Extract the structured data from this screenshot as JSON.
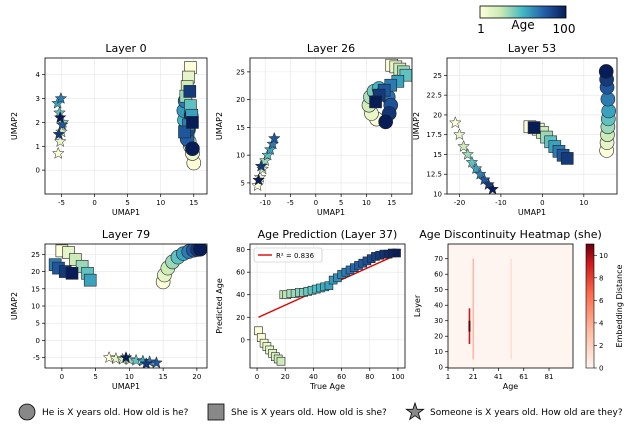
{
  "colorbar": {
    "label": "Age",
    "min_label": "1",
    "max_label": "100"
  },
  "legend": {
    "circle_label": "He is X years old. How old is he?",
    "square_label": "She is X years old. How old is she?",
    "star_label": "Someone is X years old. How old are they?"
  },
  "chart_data": [
    {
      "type": "scatter",
      "title": "Layer 0",
      "xlabel": "UMAP1",
      "ylabel": "UMAP2",
      "xlim": [
        -7.5,
        17
      ],
      "ylim": [
        -1,
        4.7
      ],
      "xticks": [
        -5,
        0,
        5,
        10,
        15
      ],
      "yticks": [
        0,
        1,
        2,
        3,
        4
      ],
      "series": [
        {
          "marker": "circle",
          "x": [
            15,
            14.8,
            14.5,
            14.3,
            14.0,
            13.8,
            13.6,
            13.5,
            13.7,
            14.0,
            14.2,
            14.6,
            14.8
          ],
          "y": [
            0.3,
            0.7,
            1.0,
            1.2,
            1.5,
            1.8,
            2.1,
            2.5,
            2.9,
            1.3,
            1.7,
            2.3,
            0.9
          ]
        },
        {
          "marker": "square",
          "x": [
            14.5,
            14.2,
            14.0,
            13.8,
            14.5,
            14.7,
            14.2,
            13.6,
            14.4,
            14.8
          ],
          "y": [
            4.3,
            3.9,
            3.5,
            3.1,
            2.7,
            2.3,
            1.9,
            1.6,
            3.3,
            2.0
          ]
        },
        {
          "marker": "star",
          "x": [
            -5.5,
            -5.2,
            -5.0,
            -4.8,
            -5.3,
            -5.6,
            -5.1,
            -4.9,
            -5.4,
            -5.2
          ],
          "y": [
            0.7,
            1.2,
            1.6,
            2.0,
            2.4,
            2.8,
            3.0,
            1.9,
            1.5,
            2.2
          ]
        }
      ]
    },
    {
      "type": "scatter",
      "title": "Layer 26",
      "xlabel": "UMAP1",
      "ylabel": "UMAP2",
      "xlim": [
        -13,
        19
      ],
      "ylim": [
        3,
        27.5
      ],
      "xticks": [
        -10,
        -5,
        0,
        5,
        10,
        15
      ],
      "yticks": [
        5,
        10,
        15,
        20,
        25
      ],
      "series": [
        {
          "marker": "circle",
          "x": [
            12,
            11,
            10.5,
            10.8,
            11.5,
            12.5,
            13.5,
            14.3,
            14.8,
            14.5,
            13.8
          ],
          "y": [
            16.5,
            17.5,
            19,
            20.5,
            21.5,
            22,
            21.5,
            20.5,
            19,
            17.5,
            16
          ]
        },
        {
          "marker": "square",
          "x": [
            15,
            15.8,
            16.6,
            17.3,
            17.8,
            16.2,
            14.8,
            13.5,
            12.5,
            11.8
          ],
          "y": [
            26.2,
            25.9,
            25.5,
            25.0,
            24.4,
            23.3,
            22.6,
            21.7,
            20.8,
            19.6
          ]
        },
        {
          "marker": "star",
          "x": [
            -11.5,
            -11.0,
            -10.5,
            -10.0,
            -9.5,
            -9.0,
            -8.5,
            -8.2,
            -10.8,
            -11.3
          ],
          "y": [
            4.5,
            6,
            7.5,
            9,
            10,
            11,
            12,
            13,
            8,
            5.5
          ]
        }
      ]
    },
    {
      "type": "scatter",
      "title": "Layer 53",
      "xlabel": "UMAP1",
      "ylabel": "UMAP2",
      "xlim": [
        -23,
        18
      ],
      "ylim": [
        10,
        27.2
      ],
      "xticks": [
        -20,
        -10,
        0,
        10
      ],
      "yticks": [
        10.0,
        12.5,
        15.0,
        17.5,
        20.0,
        22.5,
        25.0
      ],
      "series": [
        {
          "marker": "circle",
          "x": [
            15.5,
            15.6,
            15.7,
            15.8,
            15.9,
            16.0,
            15.8,
            15.6,
            15.5,
            15.4
          ],
          "y": [
            15.5,
            16.5,
            17.5,
            18.5,
            19.5,
            20.5,
            22,
            23.5,
            24.5,
            25.5
          ]
        },
        {
          "marker": "square",
          "x": [
            -3,
            -1,
            0,
            1,
            2,
            3,
            4,
            5,
            6,
            -2
          ],
          "y": [
            18.5,
            18.2,
            17.8,
            17.2,
            16.6,
            16.0,
            15.4,
            14.9,
            14.5,
            18.4
          ]
        },
        {
          "marker": "star",
          "x": [
            -21,
            -20,
            -19,
            -18,
            -17,
            -16,
            -15,
            -14,
            -13,
            -12
          ],
          "y": [
            19,
            17.5,
            16,
            15,
            14,
            13.2,
            12.5,
            11.8,
            11.2,
            10.6
          ]
        }
      ]
    },
    {
      "type": "scatter",
      "title": "Layer 79",
      "xlabel": "UMAP1",
      "ylabel": "UMAP2",
      "xlim": [
        -2.5,
        21.5
      ],
      "ylim": [
        -8,
        28
      ],
      "xticks": [
        0,
        5,
        10,
        15,
        20
      ],
      "yticks": [
        -5,
        0,
        5,
        10,
        15,
        20,
        25
      ],
      "series": [
        {
          "marker": "circle",
          "x": [
            15,
            15.2,
            15.7,
            16.4,
            17.2,
            18.0,
            18.8,
            19.5,
            20.1,
            20.5
          ],
          "y": [
            17,
            19,
            21,
            22.8,
            24.2,
            25.2,
            25.8,
            26.2,
            26.4,
            26.5
          ]
        },
        {
          "marker": "square",
          "x": [
            0,
            1,
            2,
            3,
            3.8,
            4.2,
            -1,
            -0.5,
            0.5,
            1.5
          ],
          "y": [
            26,
            25.5,
            23.5,
            21.5,
            19.5,
            17.5,
            22,
            21,
            20,
            19.5
          ]
        },
        {
          "marker": "star",
          "x": [
            7,
            8,
            9,
            10,
            11,
            12,
            13,
            14,
            12.5,
            9.5
          ],
          "y": [
            -5,
            -5.3,
            -5.5,
            -5.6,
            -5.8,
            -6.0,
            -6.2,
            -6.5,
            -6.8,
            -5.0
          ]
        }
      ]
    },
    {
      "type": "scatter",
      "title": "Age Prediction (Layer 37)",
      "xlabel": "True Age",
      "ylabel": "Predicted Age",
      "xlim": [
        -5,
        105
      ],
      "ylim": [
        -25,
        85
      ],
      "xticks": [
        0,
        20,
        40,
        60,
        80,
        100
      ],
      "yticks": [
        0,
        20,
        40,
        60,
        80
      ],
      "annotation": "R² = 0.836",
      "fit_line": {
        "x": [
          1,
          100
        ],
        "y": [
          20,
          76
        ]
      },
      "series": [
        {
          "marker": "square",
          "x": [
            1,
            3,
            5,
            7,
            9,
            11,
            13,
            15,
            17,
            19,
            21,
            24,
            27,
            30,
            33,
            36,
            39,
            42,
            45,
            48,
            51,
            54,
            57,
            60,
            63,
            66,
            69,
            72,
            75,
            78,
            81,
            84,
            87,
            90,
            93,
            96,
            99
          ],
          "y": [
            8,
            2,
            -3,
            -6,
            -9,
            -12,
            -15,
            -17,
            -19,
            40,
            40,
            41,
            41,
            42,
            42,
            43,
            44,
            45,
            46,
            47,
            48,
            53,
            55,
            58,
            60,
            62,
            64,
            66,
            68,
            70,
            72,
            74,
            75,
            76,
            76,
            77,
            77
          ]
        }
      ]
    },
    {
      "type": "heatmap",
      "title": "Age Discontinuity Heatmap (she)",
      "xlabel": "Age",
      "ylabel": "Layer",
      "xticks": [
        1,
        21,
        41,
        61,
        81
      ],
      "yticks": [
        0,
        10,
        20,
        30,
        40,
        50,
        60,
        70
      ],
      "colorbar": {
        "label": "Embedding Distance",
        "min": 0,
        "max": 11,
        "ticks": [
          0,
          2,
          4,
          6,
          8,
          10
        ]
      },
      "hot_columns": [
        {
          "age": 18,
          "from_layer": 15,
          "to_layer": 38,
          "peak": 10
        },
        {
          "age": 21,
          "from_layer": 5,
          "to_layer": 70,
          "peak": 2
        },
        {
          "age": 51,
          "from_layer": 5,
          "to_layer": 70,
          "peak": 1
        }
      ]
    }
  ]
}
